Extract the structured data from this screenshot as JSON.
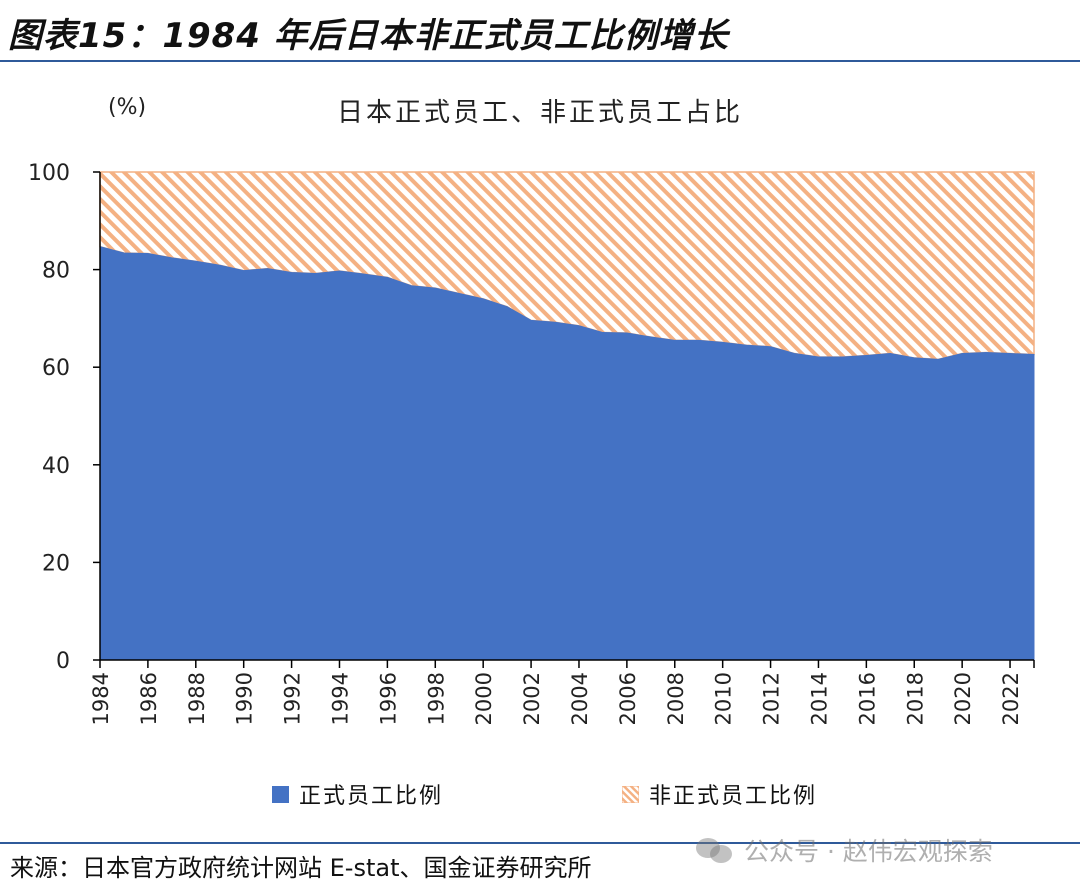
{
  "figure": {
    "title": "图表15：1984 年后日本非正式员工比例增长",
    "source": "来源：日本官方政府统计网站 E-stat、国金证券研究所",
    "watermark": "公众号 · 赵伟宏观探索"
  },
  "colors": {
    "accent_rule": "#2f5a9a",
    "regular": "#4472c4",
    "irregular_stripe": "#f4b183",
    "irregular_bg": "#ffffff"
  },
  "chart_data": {
    "type": "area",
    "title": "日本正式员工、非正式员工占比",
    "ylabel": "(%)",
    "xlabel": "",
    "ylim": [
      0,
      100
    ],
    "yticks": [
      0,
      20,
      40,
      60,
      80,
      100
    ],
    "xlim": [
      1984,
      2023
    ],
    "x_tick_labels": [
      "1984",
      "1986",
      "1988",
      "1990",
      "1992",
      "1994",
      "1996",
      "1998",
      "2000",
      "2002",
      "2004",
      "2006",
      "2008",
      "2010",
      "2012",
      "2014",
      "2016",
      "2018",
      "2020",
      "2022"
    ],
    "stacked": true,
    "grid": false,
    "legend_position": "bottom",
    "x": [
      1984,
      1985,
      1986,
      1987,
      1988,
      1989,
      1990,
      1991,
      1992,
      1993,
      1994,
      1995,
      1996,
      1997,
      1998,
      1999,
      2000,
      2001,
      2002,
      2003,
      2004,
      2005,
      2006,
      2007,
      2008,
      2009,
      2010,
      2011,
      2012,
      2013,
      2014,
      2015,
      2016,
      2017,
      2018,
      2019,
      2020,
      2021,
      2022,
      2023
    ],
    "series": [
      {
        "name": "正式员工比例",
        "pattern": "solid",
        "values": [
          84.7,
          83.4,
          83.3,
          82.4,
          81.7,
          80.9,
          79.8,
          80.2,
          79.4,
          79.2,
          79.7,
          79.1,
          78.4,
          76.7,
          76.2,
          75.1,
          74.0,
          72.4,
          69.6,
          69.2,
          68.5,
          67.1,
          67.0,
          66.2,
          65.5,
          65.5,
          65.1,
          64.5,
          64.2,
          62.8,
          62.1,
          62.1,
          62.4,
          62.8,
          61.9,
          61.6,
          62.8,
          63.0,
          62.8,
          62.6
        ]
      },
      {
        "name": "非正式员工比例",
        "pattern": "diagonal-stripes",
        "values": [
          15.3,
          16.6,
          16.7,
          17.6,
          18.3,
          19.1,
          20.2,
          19.8,
          20.6,
          20.8,
          20.3,
          20.9,
          21.6,
          23.3,
          23.8,
          24.9,
          26.0,
          27.6,
          30.4,
          30.8,
          31.5,
          32.9,
          33.0,
          33.8,
          34.5,
          34.5,
          34.9,
          35.5,
          35.8,
          37.2,
          37.9,
          37.9,
          37.6,
          37.2,
          38.1,
          38.4,
          37.2,
          37.0,
          37.2,
          37.4
        ]
      }
    ]
  }
}
